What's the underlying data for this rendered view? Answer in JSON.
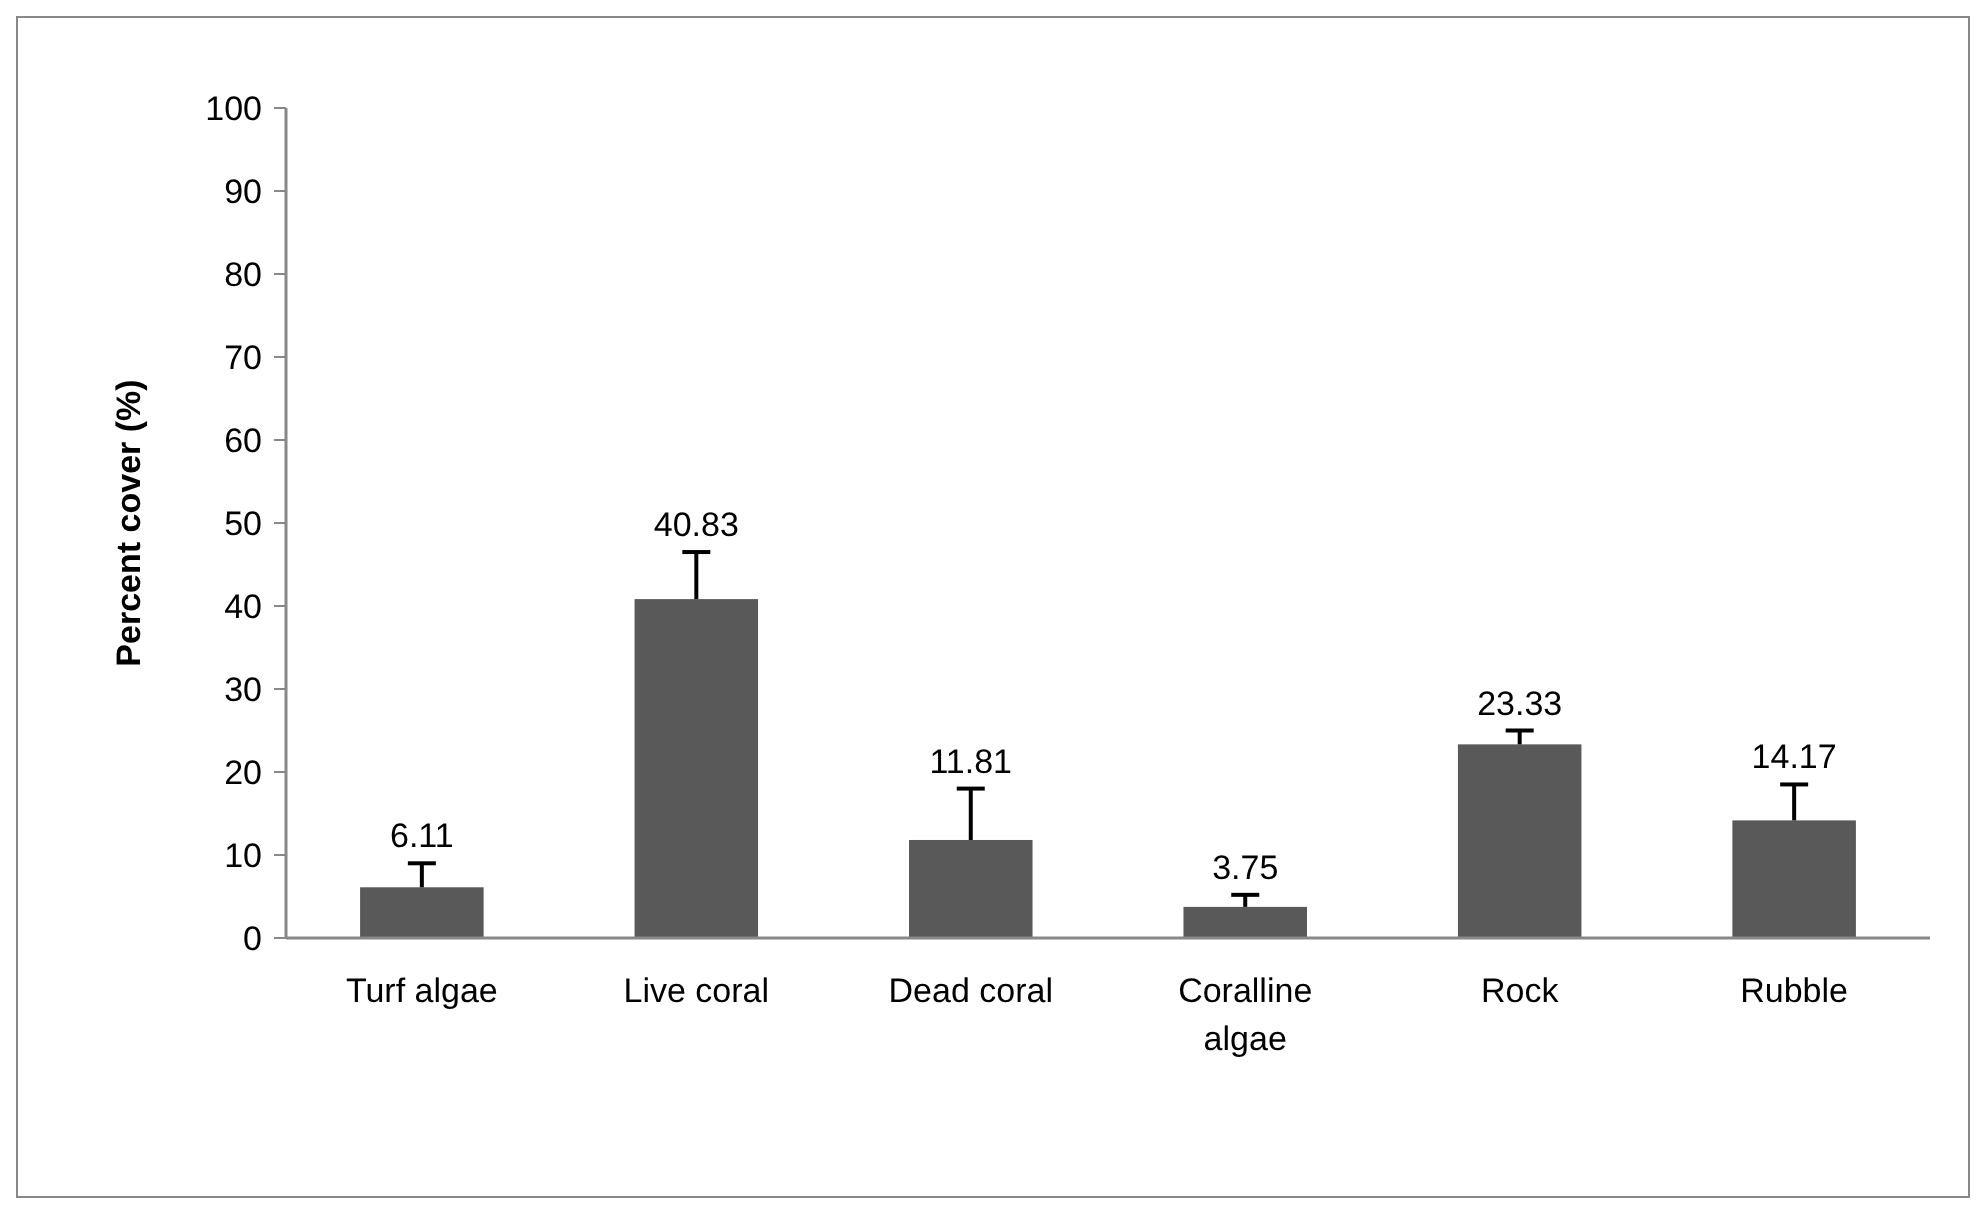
{
  "chart_data": {
    "type": "bar",
    "ylabel": "Percent cover (%)",
    "categories": [
      "Turf algae",
      "Live coral",
      "Dead coral",
      "Coralline algae",
      "Rock",
      "Rubble"
    ],
    "values": [
      6.11,
      40.83,
      11.81,
      3.75,
      23.33,
      14.17
    ],
    "color": "#595959",
    "errors": [
      [
        6.11,
        9
      ],
      [
        40.83,
        46.5
      ],
      [
        11.81,
        18
      ],
      [
        3.75,
        5.2
      ],
      [
        23.33,
        25
      ],
      [
        14.17,
        18.5
      ]
    ],
    "data_labels": true,
    "ylim": [
      0,
      100
    ],
    "yticks": [
      0,
      10,
      20,
      30,
      40,
      50,
      60,
      70,
      80,
      90,
      100
    ],
    "grid": false
  }
}
